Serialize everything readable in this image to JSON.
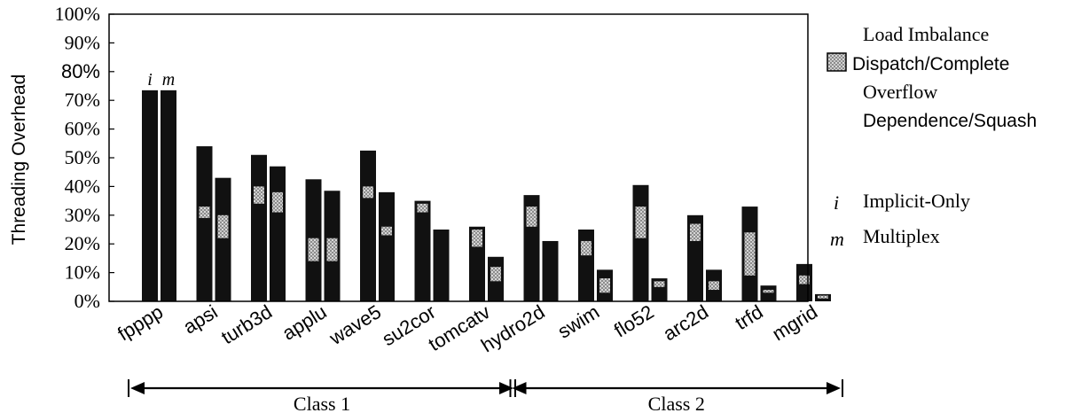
{
  "chart_data": {
    "type": "bar",
    "ylabel": "Threading Overhead",
    "yticks": [
      "0%",
      "10%",
      "20%",
      "30%",
      "40%",
      "50%",
      "60%",
      "70%",
      "80%",
      "90%",
      "100%"
    ],
    "ylim": [
      0,
      100
    ],
    "grid": false,
    "categories": [
      "fpppp",
      "apsi",
      "turb3d",
      "applu",
      "wave5",
      "su2cor",
      "tomcatv",
      "hydro2d",
      "swim",
      "flo52",
      "arc2d",
      "trfd",
      "mgrid"
    ],
    "series": [
      {
        "name": "Implicit-Only",
        "marker": "i",
        "values": [
          73.5,
          54,
          51,
          42.5,
          52.5,
          35,
          26,
          37,
          25,
          40.5,
          30,
          33,
          13
        ]
      },
      {
        "name": "Multiplex",
        "marker": "m",
        "values": [
          73.5,
          43,
          47,
          38.5,
          38,
          25,
          15.5,
          21,
          11,
          8,
          11,
          5.5,
          2.5
        ]
      }
    ],
    "dispatch_complete_band": [
      [
        null,
        null,
        null,
        null
      ],
      [
        29,
        33,
        22,
        30
      ],
      [
        34,
        40,
        31,
        38
      ],
      [
        14,
        22,
        14,
        22
      ],
      [
        36,
        40,
        23,
        26
      ],
      [
        31,
        34,
        null,
        null
      ],
      [
        19,
        25,
        7,
        12
      ],
      [
        26,
        33,
        null,
        null
      ],
      [
        16,
        21,
        3,
        8
      ],
      [
        22,
        33,
        5,
        7
      ],
      [
        21,
        27,
        4,
        7
      ],
      [
        9,
        24,
        3,
        4
      ],
      [
        6,
        9,
        1,
        2
      ]
    ],
    "annotations": [
      {
        "text": "i",
        "category": "fpppp",
        "series": "Implicit-Only"
      },
      {
        "text": "m",
        "category": "fpppp",
        "series": "Multiplex"
      }
    ],
    "legend": {
      "placement": "right",
      "entries": [
        "Load Imbalance",
        "Dispatch/Complete",
        "Overflow",
        "Dependence/Squash"
      ],
      "key_entries": [
        {
          "symbol": "i",
          "label": "Implicit-Only"
        },
        {
          "symbol": "m",
          "label": "Multiplex"
        }
      ]
    },
    "groups": [
      {
        "label": "Class 1",
        "from": "fpppp",
        "to": "tomcatv"
      },
      {
        "label": "Class 2",
        "from": "hydro2d",
        "to": "mgrid"
      }
    ],
    "colors": {
      "bar": "#111111",
      "band": "#9a9a9a",
      "axis": "#000000"
    }
  }
}
